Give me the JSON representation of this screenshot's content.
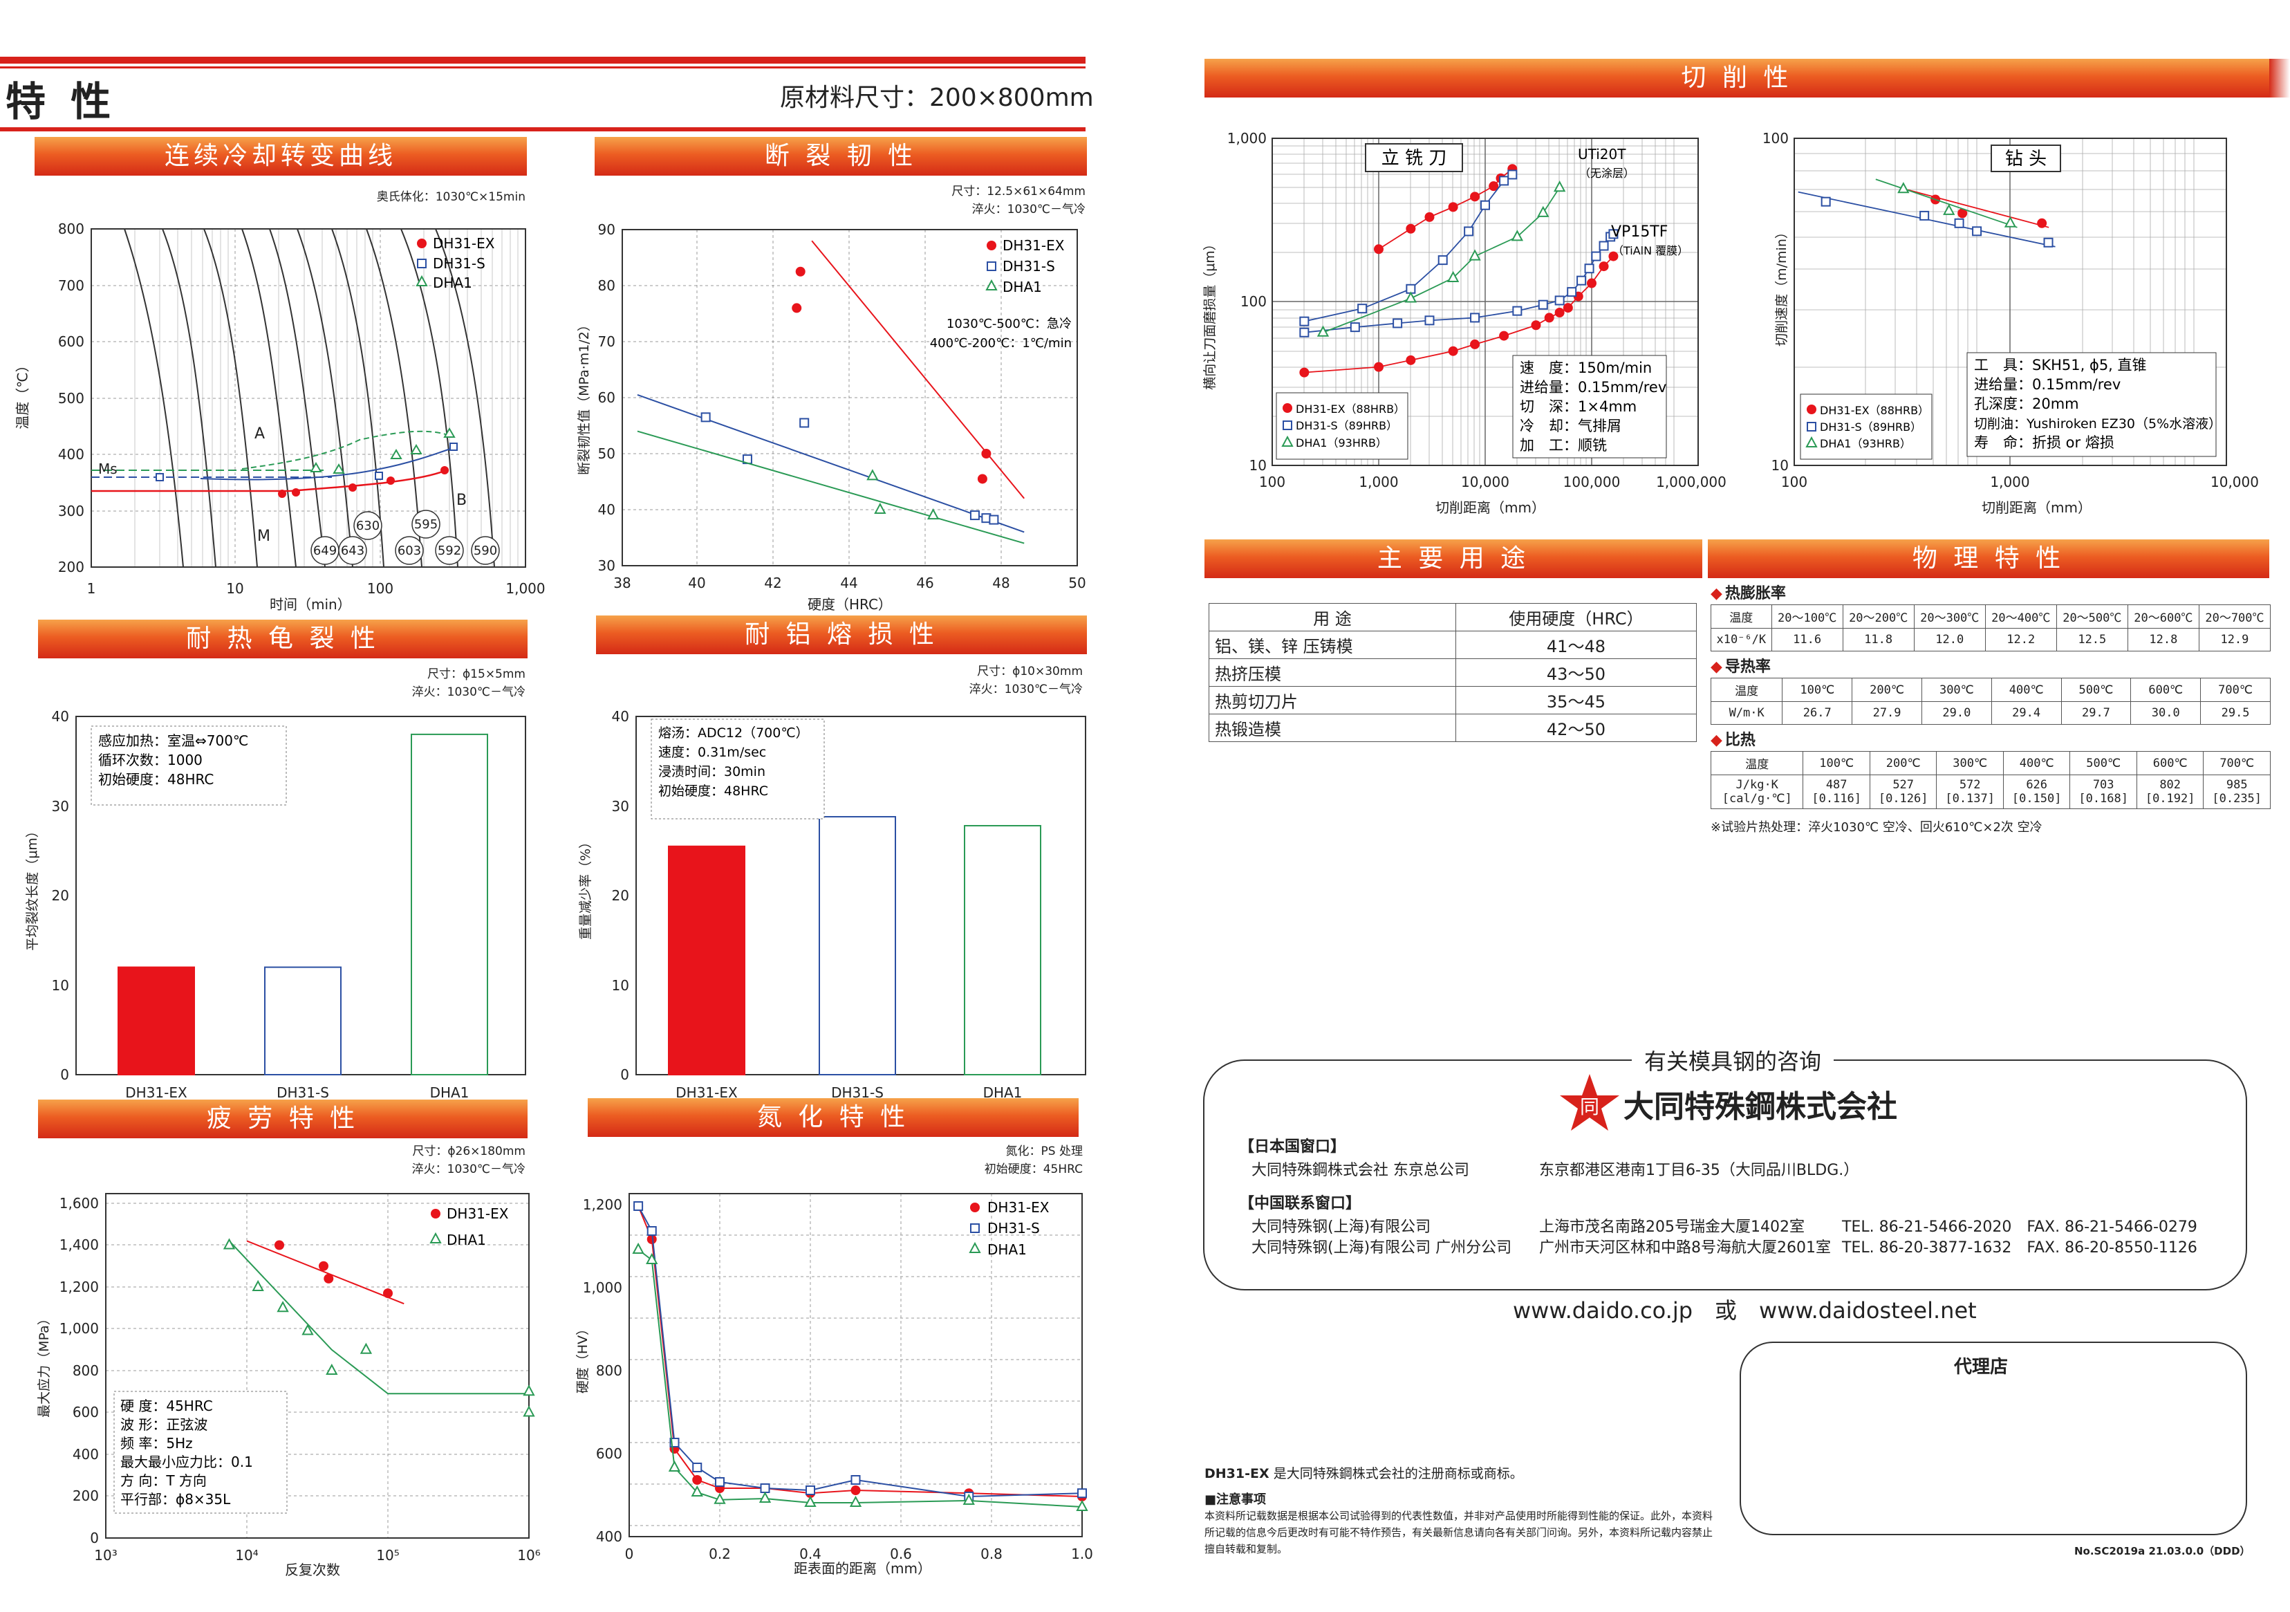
{
  "header": {
    "page_title": "特 性",
    "raw_size": "原材料尺寸：200×800mm",
    "right_title": "切 削 性"
  },
  "legend_labels": {
    "ex": "DH31-EX",
    "s": "DH31-S",
    "dha": "DHA1"
  },
  "colors": {
    "ex": "#e8141b",
    "s": "#2b4fa3",
    "dha": "#2a9a55",
    "band": "#e5481f"
  },
  "cct": {
    "title": "连续冷却转变曲线",
    "note": "奥氏体化：1030℃×15min",
    "xlabel": "时间（min）",
    "ylabel": "温度（℃）",
    "xticks": [
      "1",
      "10",
      "100",
      "1,000"
    ],
    "yticks": [
      "200",
      "300",
      "400",
      "500",
      "600",
      "700",
      "800"
    ],
    "region_labels": [
      "A",
      "Ms",
      "M",
      "B"
    ],
    "hardness_labels": [
      "649",
      "643",
      "630",
      "603",
      "595",
      "592",
      "590"
    ]
  },
  "fracture": {
    "title": "断 裂 韧 性",
    "note1": "尺寸：12.5×61×64mm",
    "note2": "淬火：1030℃－气冷",
    "cond1": "1030℃-500℃：急冷",
    "cond2": "400℃-200℃：1℃/min",
    "xlabel": "硬度（HRC）",
    "ylabel": "断裂韧性值（MPa·m1/2）",
    "xticks": [
      "38",
      "40",
      "42",
      "44",
      "46",
      "48",
      "50"
    ],
    "yticks": [
      "30",
      "40",
      "50",
      "60",
      "70",
      "80",
      "90"
    ]
  },
  "heatcheck": {
    "title": "耐 热 龟 裂 性",
    "note1": "尺寸：ϕ15×5mm",
    "note2": "淬火：1030℃－气冷",
    "box": [
      "感应加热：室温⇔700℃",
      "循环次数：1000",
      "初始硬度：48HRC"
    ],
    "ylabel": "平均裂纹长度（μm）",
    "yticks": [
      "0",
      "10",
      "20",
      "30",
      "40"
    ]
  },
  "erosion": {
    "title": "耐 铝 熔 损 性",
    "note1": "尺寸：ϕ10×30mm",
    "note2": "淬火：1030℃－气冷",
    "box": [
      "熔汤：ADC12（700℃）",
      "速度：0.31m/sec",
      "浸渍时间：30min",
      "初始硬度：48HRC"
    ],
    "ylabel": "重量减少率（%）",
    "yticks": [
      "0",
      "10",
      "20",
      "30",
      "40"
    ]
  },
  "fatigue": {
    "title": "疲 劳 特 性",
    "note1": "尺寸：ϕ26×180mm",
    "note2": "淬火：1030℃－气冷",
    "box": [
      "硬 度：45HRC",
      "波 形：正弦波",
      "频 率：5Hz",
      "最大最小应力比：0.1",
      "方 向：T 方向",
      "平行部：ϕ8×35L"
    ],
    "xlabel": "反复次数",
    "ylabel": "最大应力（MPa）",
    "yticks": [
      "0",
      "200",
      "400",
      "600",
      "800",
      "1,000",
      "1,200",
      "1,400",
      "1,600"
    ],
    "xticks": [
      "10³",
      "10⁴",
      "10⁵",
      "10⁶"
    ]
  },
  "nitriding": {
    "title": "氮 化 特 性",
    "note1": "氮化：PS 处理",
    "note2": "初始硬度：45HRC",
    "xlabel": "距表面的距离（mm）",
    "ylabel": "硬度（HV）",
    "xticks": [
      "0",
      "0.2",
      "0.4",
      "0.6",
      "0.8",
      "1.0"
    ],
    "yticks": [
      "400",
      "600",
      "800",
      "1,000",
      "1,200"
    ]
  },
  "endmill": {
    "title": "立 铣 刀",
    "label_uti": "UTi20T",
    "label_uti2": "（无涂层）",
    "label_vp": "VP15TF",
    "label_vp2": "（TiAlN 覆膜）",
    "legend": [
      "DH31-EX（88HRB）",
      "DH31-S（89HRB）",
      "DHA1（93HRB）"
    ],
    "box": [
      "速　度：150m/min",
      "进给量：0.15mm/rev",
      "切　深：1×4mm",
      "冷　却：气排屑",
      "加　工：顺铣"
    ],
    "xlabel": "切削距离（mm）",
    "ylabel": "横向让刀面磨损量（μm）",
    "xticks": [
      "100",
      "1,000",
      "10,000",
      "100,000",
      "1,000,000"
    ],
    "yticks": [
      "10",
      "100",
      "1,000"
    ]
  },
  "drill": {
    "title": "钻 头",
    "legend": [
      "DH31-EX（88HRB）",
      "DH31-S（89HRB）",
      "DHA1（93HRB）"
    ],
    "box": [
      "工　具：SKH51, ϕ5, 直锥",
      "进给量：0.15mm/rev",
      "孔深度：20mm",
      "切削油：Yushiroken EZ30（5%水溶液）",
      "寿　命：折损 or 熔损"
    ],
    "xlabel": "切削距离（mm）",
    "ylabel": "切削速度（m/min）",
    "xticks": [
      "100",
      "1,000",
      "10,000"
    ],
    "yticks": [
      "10",
      "100"
    ]
  },
  "uses": {
    "title": "主 要 用 途",
    "headers": [
      "用 途",
      "使用硬度（HRC）"
    ],
    "rows": [
      [
        "铝、镁、锌 压铸模",
        "41～48"
      ],
      [
        "热挤压模",
        "43～50"
      ],
      [
        "热剪切刀片",
        "35～45"
      ],
      [
        "热锻造模",
        "42～50"
      ]
    ]
  },
  "physical": {
    "title": "物 理 特 性",
    "expansion": {
      "label": "热膨胀率",
      "row_head": [
        "温度",
        "x10⁻⁶/K"
      ],
      "temps": [
        "20～100℃",
        "20～200℃",
        "20～300℃",
        "20～400℃",
        "20～500℃",
        "20～600℃",
        "20～700℃"
      ],
      "values": [
        "11.6",
        "11.8",
        "12.0",
        "12.2",
        "12.5",
        "12.8",
        "12.9"
      ]
    },
    "conductivity": {
      "label": "导热率",
      "row_head": [
        "温度",
        "W/m·K"
      ],
      "temps": [
        "100℃",
        "200℃",
        "300℃",
        "400℃",
        "500℃",
        "600℃",
        "700℃"
      ],
      "values": [
        "26.7",
        "27.9",
        "29.0",
        "29.4",
        "29.7",
        "30.0",
        "29.5"
      ]
    },
    "specific_heat": {
      "label": "比热",
      "row_head": [
        "温度",
        "J/kg·K",
        "[cal/g·℃]"
      ],
      "temps": [
        "100℃",
        "200℃",
        "300℃",
        "400℃",
        "500℃",
        "600℃",
        "700℃"
      ],
      "values": [
        "487",
        "527",
        "572",
        "626",
        "703",
        "802",
        "985"
      ],
      "cal": [
        "[0.116]",
        "[0.126]",
        "[0.137]",
        "[0.150]",
        "[0.168]",
        "[0.192]",
        "[0.235]"
      ]
    },
    "footnote": "※试验片热处理：淬火1030℃ 空冷、回火610℃×2次 空冷"
  },
  "contact": {
    "heading": "有关模具钢的咨询",
    "company": "大同特殊鋼株式会社",
    "logo_char": "同",
    "japan_head": "【日本国窗口】",
    "japan": [
      [
        "大同特殊鋼株式会社 东京总公司",
        "东京都港区港南1丁目6-35（大同品川BLDG.）",
        ""
      ]
    ],
    "china_head": "【中国联系窗口】",
    "china": [
      [
        "大同特殊钢(上海)有限公司",
        "上海市茂名南路205号瑞金大厦1402室",
        "TEL. 86-21-5466-2020　FAX. 86-21-5466-0279"
      ],
      [
        "大同特殊钢(上海)有限公司 广州分公司",
        "广州市天河区林和中路8号海航大厦2601室",
        "TEL. 86-20-3877-1632　FAX. 86-20-8550-1126"
      ]
    ],
    "web": "www.daido.co.jp　或　www.daidosteel.net",
    "agent": "代理店"
  },
  "footer": {
    "trademark_name": "DH31-EX",
    "trademark": "是大同特殊鋼株式会社的注册商标或商标。",
    "notice_head": "■注意事项",
    "notice": "本资料所记载数据是根据本公司试验得到的代表性数值，并非对产品使用时所能得到性能的保证。此外，本资料所记载的信息今后更改时有可能不特作预告，有关最新信息请向各有关部门问询。另外，本资料所记载内容禁止擅自转载和复制。",
    "code": "No.SC2019a 21.03.0.0（DDD）"
  },
  "chart_data": [
    {
      "type": "line",
      "title": "断裂韧性",
      "xlabel": "硬度（HRC）",
      "ylabel": "断裂韧性值（MPa·m1/2）",
      "xlim": [
        38,
        50
      ],
      "ylim": [
        30,
        90
      ],
      "series": [
        {
          "name": "DH31-EX",
          "points": [
            [
              42.7,
              82.5
            ],
            [
              42.6,
              76
            ],
            [
              47.6,
              50
            ],
            [
              47.5,
              45.5
            ]
          ],
          "fit": [
            [
              43,
              88
            ],
            [
              48.6,
              42
            ]
          ]
        },
        {
          "name": "DH31-S",
          "points": [
            [
              40.2,
              56.5
            ],
            [
              41.3,
              49
            ],
            [
              42.8,
              55.5
            ],
            [
              47.3,
              39
            ],
            [
              47.6,
              38.5
            ],
            [
              47.8,
              38.2
            ]
          ],
          "fit": [
            [
              38.4,
              60.5
            ],
            [
              48.6,
              36
            ]
          ]
        },
        {
          "name": "DHA1",
          "points": [
            [
              44.6,
              46
            ],
            [
              44.8,
              40
            ],
            [
              46.2,
              39
            ]
          ],
          "fit": [
            [
              38.4,
              54
            ],
            [
              48.6,
              34
            ]
          ]
        }
      ]
    },
    {
      "type": "bar",
      "title": "耐热龟裂性",
      "categories": [
        "DH31-EX",
        "DH31-S",
        "DHA1"
      ],
      "values": [
        12,
        12,
        38
      ],
      "ylabel": "平均裂纹长度（μm）",
      "ylim": [
        0,
        40
      ]
    },
    {
      "type": "bar",
      "title": "耐铝熔损性",
      "categories": [
        "DH31-EX",
        "DH31-S",
        "DHA1"
      ],
      "values": [
        25.5,
        28.8,
        27.8
      ],
      "ylabel": "重量减少率（%）",
      "ylim": [
        0,
        40
      ]
    },
    {
      "type": "scatter",
      "title": "疲劳特性",
      "xlabel": "反复次数",
      "ylabel": "最大应力（MPa）",
      "ylim": [
        0,
        1600
      ],
      "x_scale": "log",
      "series": [
        {
          "name": "DH31-EX",
          "points": [
            [
              17000,
              1400
            ],
            [
              35000,
              1300
            ],
            [
              38000,
              1240
            ],
            [
              100000,
              1170
            ]
          ]
        },
        {
          "name": "DHA1",
          "points": [
            [
              7500,
              1400
            ],
            [
              12000,
              1200
            ],
            [
              18000,
              1100
            ],
            [
              27000,
              990
            ],
            [
              40000,
              800
            ],
            [
              70000,
              900
            ],
            [
              1000000,
              700
            ],
            [
              1000000,
              600
            ]
          ]
        }
      ]
    },
    {
      "type": "line",
      "title": "氮化特性",
      "xlabel": "距表面的距离（mm）",
      "ylabel": "硬度（HV）",
      "xlim": [
        0,
        1.0
      ],
      "ylim": [
        400,
        1200
      ],
      "series": [
        {
          "name": "DH31-EX",
          "x": [
            0.02,
            0.05,
            0.1,
            0.15,
            0.2,
            0.3,
            0.4,
            0.5,
            0.75,
            1.0
          ],
          "y": [
            1170,
            1090,
            585,
            510,
            490,
            490,
            478,
            485,
            478,
            470
          ]
        },
        {
          "name": "DH31-S",
          "x": [
            0.02,
            0.05,
            0.1,
            0.15,
            0.2,
            0.3,
            0.4,
            0.5,
            0.75,
            1.0
          ],
          "y": [
            1170,
            1110,
            600,
            540,
            505,
            490,
            485,
            510,
            470,
            478
          ]
        },
        {
          "name": "DHA1",
          "x": [
            0.02,
            0.05,
            0.1,
            0.15,
            0.2,
            0.3,
            0.4,
            0.5,
            0.75,
            1.0
          ],
          "y": [
            1065,
            1040,
            540,
            480,
            462,
            465,
            455,
            455,
            460,
            445
          ]
        }
      ]
    },
    {
      "type": "scatter",
      "title": "立铣刀",
      "xlabel": "切削距离（mm）",
      "ylabel": "横向让刀面磨损量（μm）",
      "x_scale": "log",
      "y_scale": "log",
      "xlim": [
        100,
        1000000
      ],
      "ylim": [
        10,
        1000
      ],
      "series": [
        {
          "name": "DH31-EX（88HRB）",
          "uti": [
            [
              1000,
              210
            ],
            [
              2000,
              280
            ],
            [
              3000,
              330
            ],
            [
              5000,
              380
            ],
            [
              8000,
              440
            ],
            [
              12000,
              510
            ],
            [
              14000,
              570
            ],
            [
              18000,
              650
            ]
          ],
          "vp": [
            [
              200,
              37
            ],
            [
              1000,
              40
            ],
            [
              2000,
              44
            ],
            [
              5000,
              50
            ],
            [
              8000,
              55
            ],
            [
              15000,
              62
            ],
            [
              30000,
              72
            ],
            [
              40000,
              80
            ],
            [
              50000,
              86
            ],
            [
              60000,
              92
            ],
            [
              75000,
              108
            ],
            [
              100000,
              130
            ],
            [
              130000,
              165
            ],
            [
              160000,
              190
            ]
          ]
        },
        {
          "name": "DH31-S（89HRB）",
          "uti": [
            [
              200,
              76
            ],
            [
              700,
              91
            ],
            [
              2000,
              120
            ],
            [
              4000,
              180
            ],
            [
              7000,
              270
            ],
            [
              10000,
              390
            ],
            [
              15000,
              550
            ],
            [
              18000,
              600
            ]
          ],
          "vp": [
            [
              200,
              65
            ],
            [
              600,
              70
            ],
            [
              1500,
              74
            ],
            [
              3000,
              77
            ],
            [
              8000,
              80
            ],
            [
              20000,
              88
            ],
            [
              35000,
              96
            ],
            [
              50000,
              102
            ],
            [
              65000,
              115
            ],
            [
              80000,
              135
            ],
            [
              95000,
              160
            ],
            [
              110000,
              190
            ],
            [
              130000,
              220
            ],
            [
              150000,
              250
            ],
            [
              160000,
              260
            ]
          ]
        },
        {
          "name": "DHA1（93HRB）",
          "uti": [
            [
              300,
              65
            ],
            [
              2000,
              105
            ],
            [
              5000,
              140
            ],
            [
              8000,
              190
            ],
            [
              20000,
              250
            ],
            [
              35000,
              350
            ],
            [
              50000,
              500
            ]
          ],
          "vp": []
        }
      ]
    },
    {
      "type": "scatter",
      "title": "钻头",
      "xlabel": "切削距离（mm）",
      "ylabel": "切削速度（m/min）",
      "x_scale": "log",
      "y_scale": "log",
      "xlim": [
        100,
        10000
      ],
      "ylim": [
        10,
        100
      ],
      "series": [
        {
          "name": "DH31-EX（88HRB）",
          "points": [
            [
              450,
              65
            ],
            [
              600,
              59
            ],
            [
              1400,
              55
            ]
          ]
        },
        {
          "name": "DH31-S（89HRB）",
          "points": [
            [
              140,
              64
            ],
            [
              400,
              58
            ],
            [
              580,
              55
            ],
            [
              700,
              52
            ],
            [
              1500,
              48
            ]
          ]
        },
        {
          "name": "DHA1（93HRB）",
          "points": [
            [
              320,
              70
            ],
            [
              520,
              60
            ],
            [
              1000,
              55
            ]
          ]
        }
      ]
    }
  ]
}
